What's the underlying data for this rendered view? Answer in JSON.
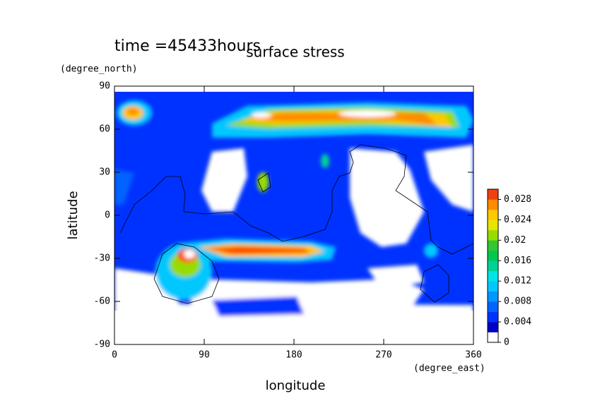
{
  "chart_data": {
    "type": "contour",
    "subtitle": "time =45433hours",
    "title": "surface stress",
    "x_label": "longitude",
    "x_unit": "(degree_east)",
    "y_label": "latitude",
    "y_unit": "(degree_north)",
    "xlim": [
      0,
      360
    ],
    "xticks": [
      0,
      90,
      180,
      270,
      360
    ],
    "ylim": [
      -90,
      90
    ],
    "yticks": [
      -90,
      -60,
      -30,
      0,
      30,
      60,
      90
    ],
    "colorbar": {
      "lim": [
        0,
        0.03
      ],
      "ticks": [
        0,
        0.004,
        0.008,
        0.012,
        0.016,
        0.02,
        0.024,
        0.028
      ],
      "colors": [
        "#ffffff",
        "#0000c8",
        "#0032ff",
        "#0064ff",
        "#0096ff",
        "#00c8ff",
        "#00e6e6",
        "#00d296",
        "#00c850",
        "#32c832",
        "#96dc00",
        "#e6e600",
        "#ffc800",
        "#ff8c00",
        "#f04010"
      ]
    }
  }
}
